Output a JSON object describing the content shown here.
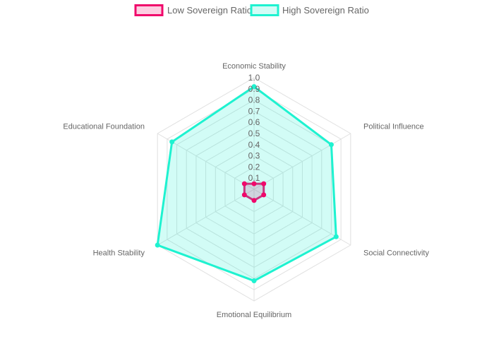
{
  "chart_data": {
    "type": "radar",
    "title": "",
    "categories": [
      "Economic Stability",
      "Political Influence",
      "Social Connectivity",
      "Emotional Equilibrium",
      "Health Stability",
      "Educational Foundation"
    ],
    "ticks": [
      "0.1",
      "0.2",
      "0.3",
      "0.4",
      "0.5",
      "0.6",
      "0.7",
      "0.8",
      "0.9",
      "1.0"
    ],
    "r_range": [
      0,
      1.0
    ],
    "grid": true,
    "legend_position": "top",
    "series": [
      {
        "name": "Low Sovereign Ratio",
        "values": [
          0.05,
          0.1,
          0.1,
          0.1,
          0.1,
          0.1
        ],
        "stroke": "#f0086b",
        "fill": "rgba(240,8,107,0.2)"
      },
      {
        "name": "High Sovereign Ratio",
        "values": [
          0.92,
          0.8,
          0.85,
          0.82,
          1.0,
          0.85
        ],
        "stroke": "#1ef2d0",
        "fill": "rgba(30,242,208,0.2)"
      }
    ]
  }
}
